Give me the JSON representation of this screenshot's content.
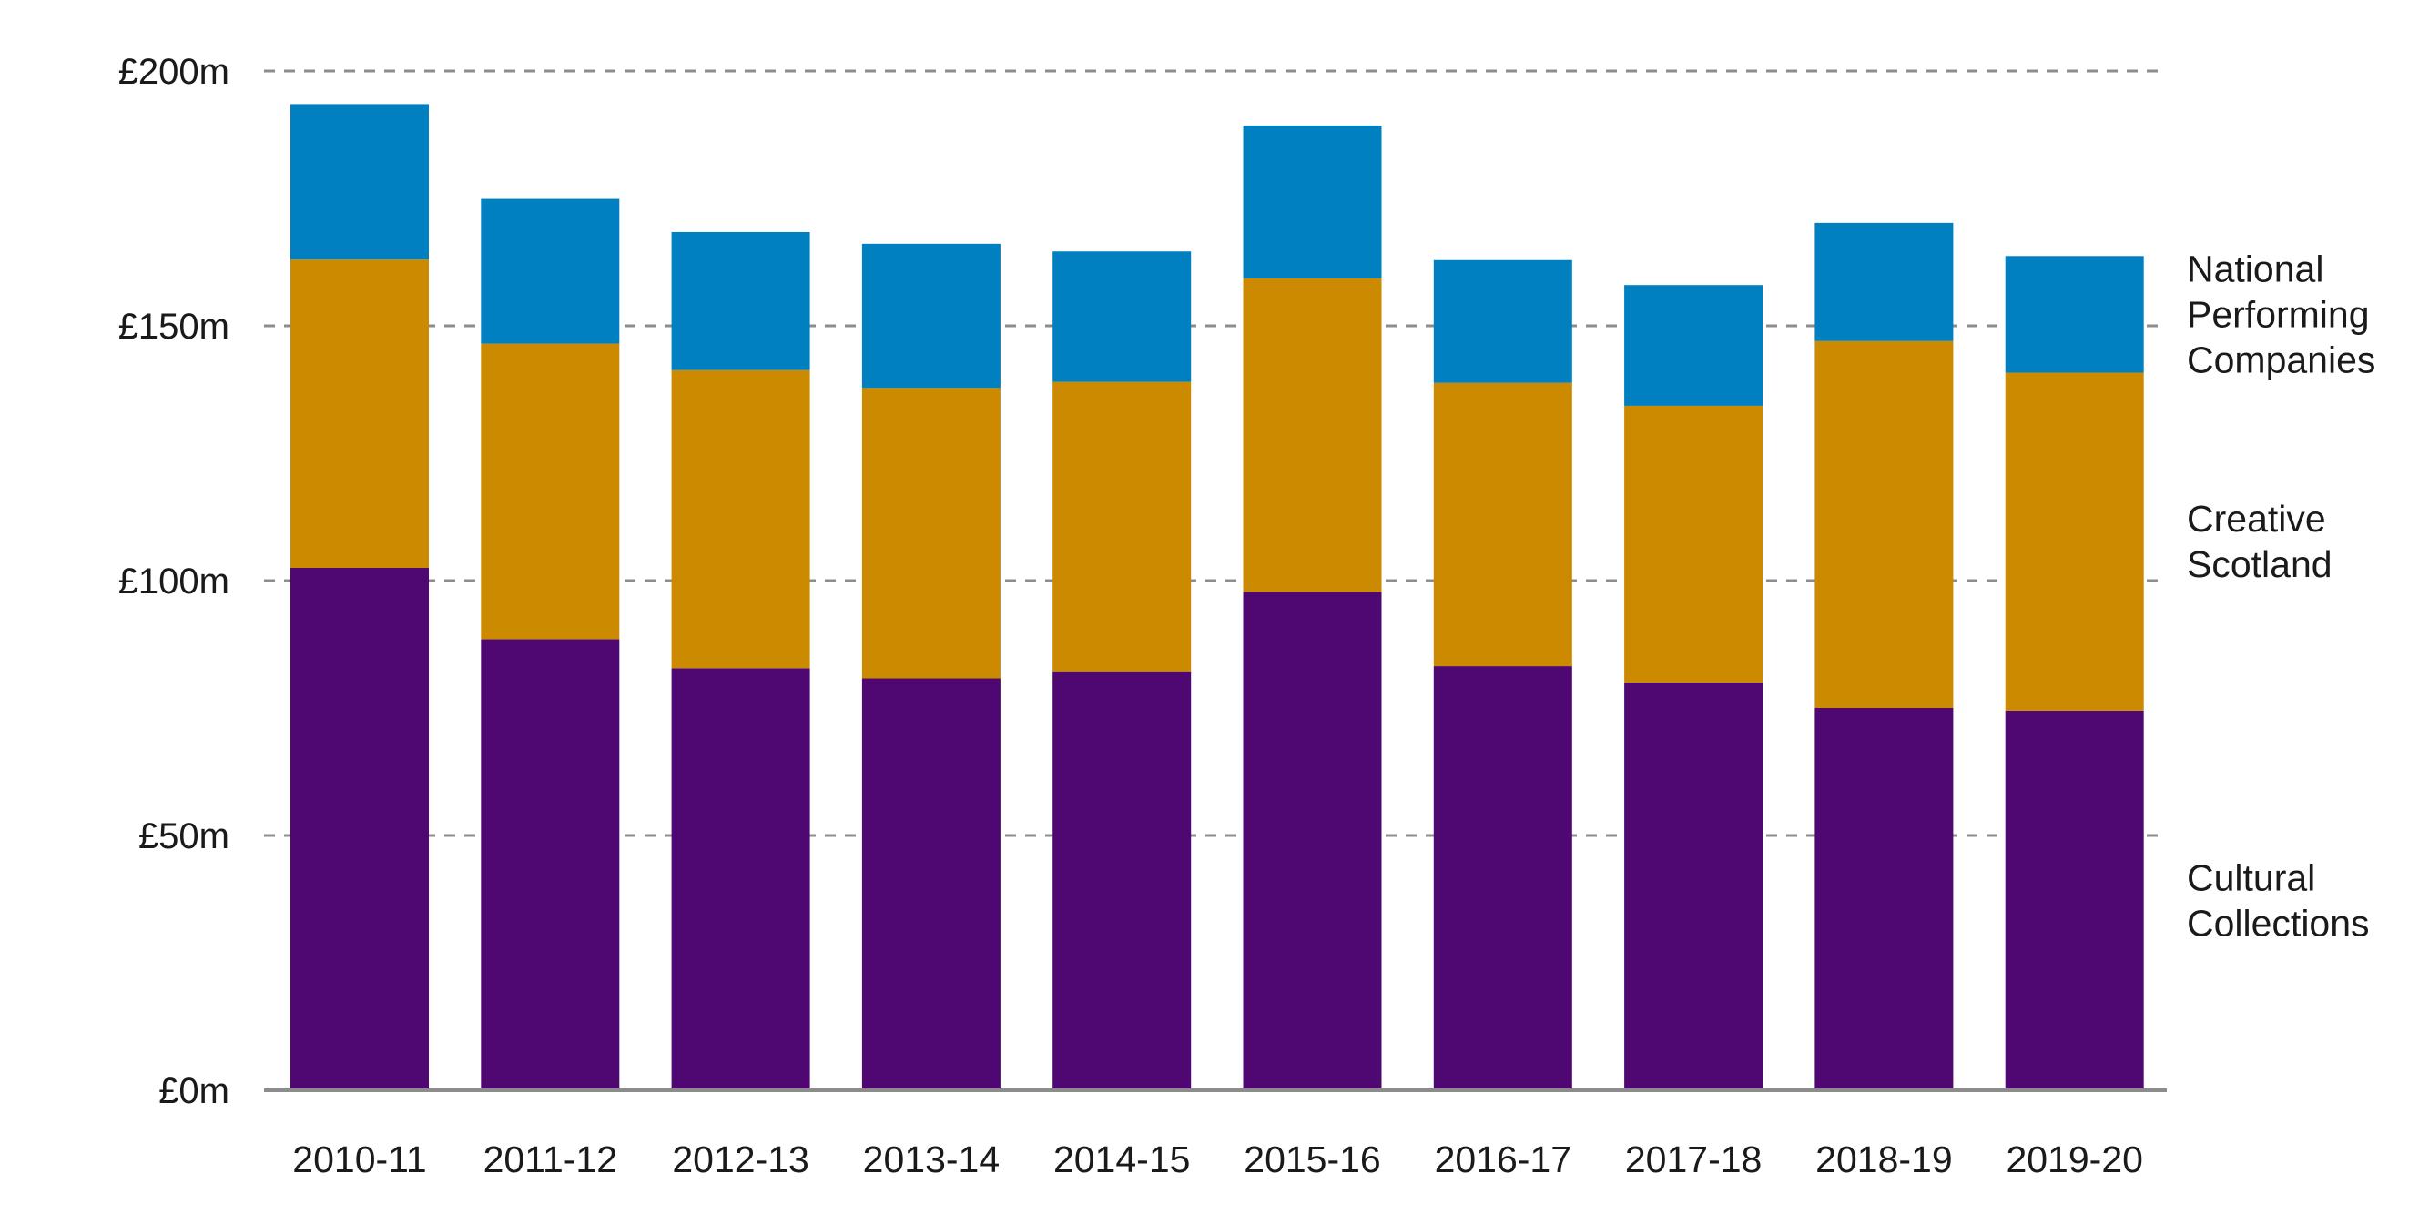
{
  "chart_data": {
    "type": "bar",
    "stacked": true,
    "categories": [
      "2010-11",
      "2011-12",
      "2012-13",
      "2013-14",
      "2014-15",
      "2015-16",
      "2016-17",
      "2017-18",
      "2018-19",
      "2019-20"
    ],
    "series": [
      {
        "name": "Cultural Collections",
        "legend_lines": [
          "Cultural",
          "Collections"
        ],
        "color": "#4f0872",
        "values": [
          102.5,
          88.5,
          82.8,
          80.8,
          82.2,
          97.8,
          83.2,
          80.0,
          75.0,
          74.5
        ]
      },
      {
        "name": "Creative Scotland",
        "legend_lines": [
          "Creative",
          "Scotland"
        ],
        "color": "#cc8a00",
        "values": [
          60.5,
          58.0,
          58.5,
          57.0,
          56.8,
          61.5,
          55.6,
          54.3,
          72.0,
          66.3
        ]
      },
      {
        "name": "National Performing Companies",
        "legend_lines": [
          "National",
          "Performing",
          "Companies"
        ],
        "color": "#0080c0",
        "values": [
          30.5,
          28.4,
          27.1,
          28.3,
          25.6,
          30.0,
          24.1,
          23.7,
          23.2,
          22.9
        ]
      }
    ],
    "ylim": [
      0,
      200
    ],
    "yticks": [
      0,
      50,
      100,
      150,
      200
    ],
    "ytick_labels": [
      "£0m",
      "£50m",
      "£100m",
      "£150m",
      "£200m"
    ],
    "grid": "horizontal dashed",
    "legend_position": "right, stacked beside each segment",
    "title": "",
    "xlabel": "",
    "ylabel": ""
  }
}
